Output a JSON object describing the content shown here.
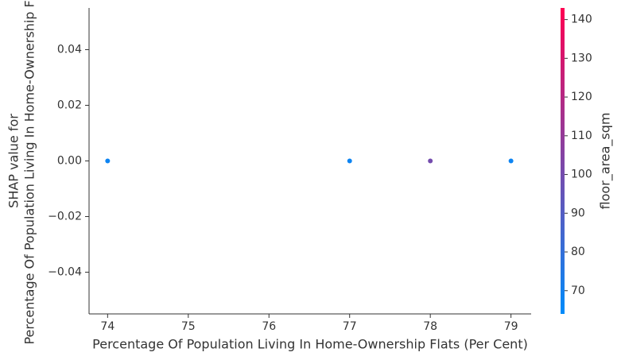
{
  "chart_data": {
    "type": "scatter",
    "xlabel": "Percentage Of Population Living In Home-Ownership Flats (Per Cent)",
    "ylabel": [
      "SHAP value for",
      "Percentage Of Population Living In Home-Ownership Flats"
    ],
    "colorbar_label": "floor_area_sqm",
    "x": [
      74,
      77,
      78,
      79
    ],
    "y": [
      0,
      0,
      0,
      0
    ],
    "color_values": [
      68,
      68,
      100,
      68
    ],
    "xlim": [
      73.77,
      79.25
    ],
    "ylim": [
      -0.055,
      0.055
    ],
    "xticks": [
      74,
      75,
      76,
      77,
      78,
      79
    ],
    "yticks": [
      {
        "value": -0.04,
        "label": "−0.04"
      },
      {
        "value": -0.02,
        "label": "−0.02"
      },
      {
        "value": 0,
        "label": "0.00"
      },
      0.02,
      0.04
    ],
    "clim": [
      64,
      143
    ],
    "cticks": [
      70,
      80,
      90,
      100,
      110,
      120,
      130,
      140
    ],
    "colormap": [
      "#008bfb",
      "#ff0052"
    ]
  }
}
